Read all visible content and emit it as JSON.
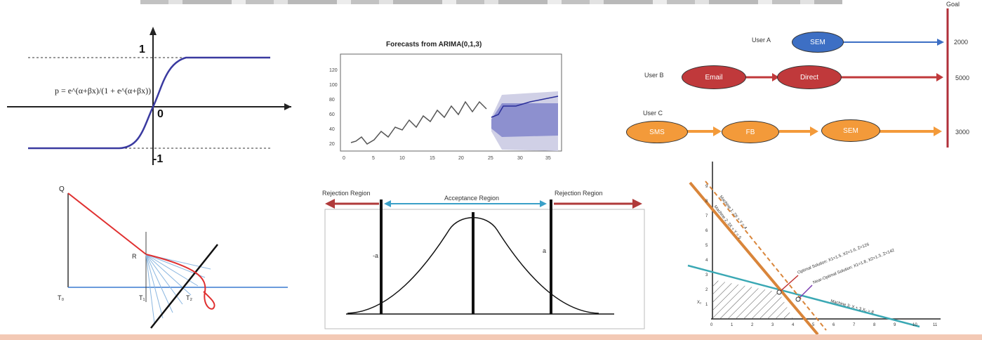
{
  "logistic": {
    "formula": "p = e^(α+βx)/(1 + e^(α+βx))",
    "label_one": "1",
    "label_zero": "0",
    "label_neg_one": "-1"
  },
  "forecast": {
    "title": "Forecasts from ARIMA(0,1,3)",
    "ytick_labels": [
      "20",
      "40",
      "60",
      "80",
      "100",
      "120"
    ],
    "xtick_labels": [
      "0",
      "5",
      "10",
      "15",
      "20",
      "25",
      "30",
      "35"
    ]
  },
  "attribution": {
    "goal_label": "Goal",
    "users": [
      {
        "name": "User A",
        "nodes": [
          "SEM"
        ],
        "value": "2000"
      },
      {
        "name": "User B",
        "nodes": [
          "Email",
          "Direct"
        ],
        "value": "5000"
      },
      {
        "name": "User C",
        "nodes": [
          "SMS",
          "FB",
          "SEM"
        ],
        "value": "3000"
      }
    ],
    "colors": {
      "user_a": "#3d6fc4",
      "user_b": "#c0393b",
      "user_c": "#f39a3a",
      "goal_line": "#b0303a"
    }
  },
  "queueing": {
    "labels": {
      "q": "Q",
      "r": "R",
      "t0": "T₀",
      "t1": "T₁",
      "t2": "T₂"
    }
  },
  "hypothesis": {
    "rejection_left": "Rejection Region",
    "acceptance": "Acceptance Region",
    "rejection_right": "Rejection Region",
    "neg_a": "-a",
    "pos_a": "a"
  },
  "lp": {
    "annotations": [
      "Machine 1: 2X + Y = 4",
      "Machine 2: 3X + Y = 5",
      "Optimal Solution: X1=1.5, X2=1.6, Z=126",
      "Near-Optimal Solution: X1=1.8, X2=1.3, Z=142",
      "Machine 3: X + 3 X₂ = 8"
    ],
    "xticks": [
      "0",
      "1",
      "2",
      "3",
      "4",
      "5",
      "6",
      "7",
      "8",
      "9",
      "10",
      "11"
    ],
    "yticks": [
      "1",
      "2",
      "3",
      "4",
      "5",
      "6",
      "7",
      "8",
      "9"
    ],
    "ylabel": "X₂"
  }
}
